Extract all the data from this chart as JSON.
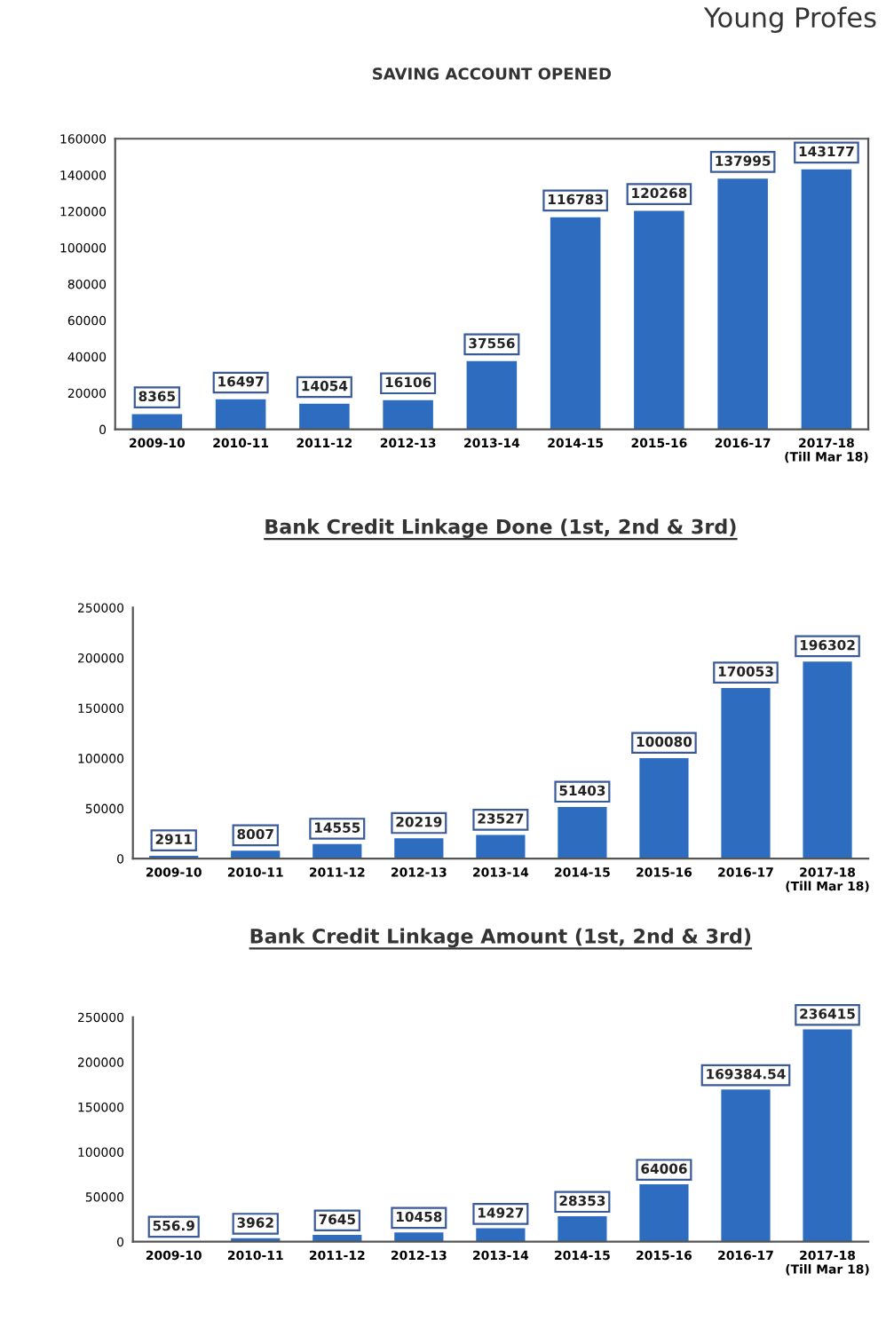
{
  "chart_data": [
    {
      "type": "bar",
      "title": "SAVING ACCOUNT OPENED",
      "annotations": [
        "Young Profes"
      ],
      "categories": [
        "2009-10",
        "2010-11",
        "2011-12",
        "2012-13",
        "2013-14",
        "2014-15",
        "2015-16",
        "2016-17",
        "2017-18\n(Till Mar 18)"
      ],
      "values": [
        8365,
        16497,
        14054,
        16106,
        37556,
        116783,
        120268,
        137995,
        143177
      ],
      "color": "#2e6cc0",
      "ylim": [
        0,
        160000
      ],
      "yticks": [
        0,
        20000,
        40000,
        60000,
        80000,
        100000,
        120000,
        140000,
        160000
      ],
      "data_labels": true,
      "grid": false,
      "legend": false
    },
    {
      "type": "bar",
      "title": "Bank Credit Linkage Done (1st, 2nd & 3rd)",
      "categories": [
        "2009-10",
        "2010-11",
        "2011-12",
        "2012-13",
        "2013-14",
        "2014-15",
        "2015-16",
        "2016-17",
        "2017-18\n(Till Mar 18)"
      ],
      "values": [
        2911,
        8007,
        14555,
        20219,
        23527,
        51403,
        100080,
        170053,
        196302
      ],
      "color": "#2e6cc0",
      "ylim": [
        0,
        250000
      ],
      "yticks": [
        0,
        50000,
        100000,
        150000,
        200000,
        250000
      ],
      "data_labels": true,
      "grid": false,
      "legend": false
    },
    {
      "type": "bar",
      "title": "Bank Credit Linkage Amount (1st, 2nd & 3rd)",
      "categories": [
        "2009-10",
        "2010-11",
        "2011-12",
        "2012-13",
        "2013-14",
        "2014-15",
        "2015-16",
        "2016-17",
        "2017-18\n(Till Mar 18)"
      ],
      "values": [
        556.9,
        3962,
        7645,
        10458,
        14927,
        28353,
        64006,
        169384.54,
        236415
      ],
      "color": "#2e6cc0",
      "ylim": [
        0,
        250000
      ],
      "yticks": [
        0,
        50000,
        100000,
        150000,
        200000,
        250000
      ],
      "data_labels": true,
      "grid": false,
      "legend": false
    }
  ]
}
